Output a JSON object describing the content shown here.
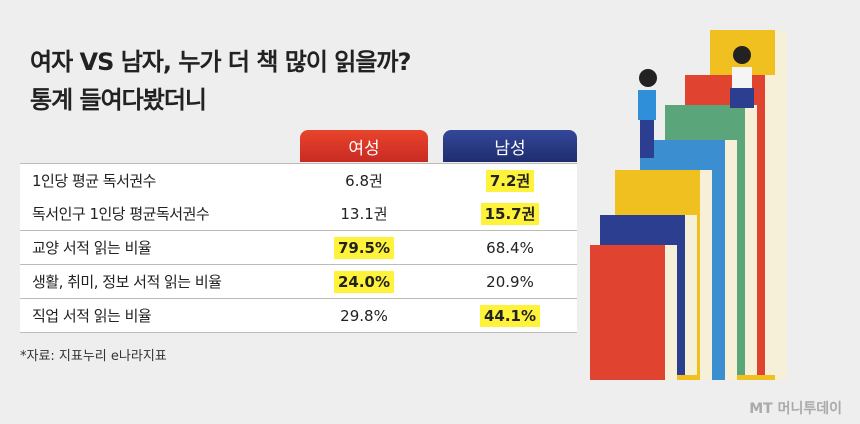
{
  "header": {
    "title_line1": "여자 VS 남자, 누가 더 책 많이 읽을까?",
    "title_line2": "통계 들여다봤더니"
  },
  "table": {
    "columns": [
      "여성",
      "남성"
    ],
    "rows": [
      [
        "1인당 평균 독서권수",
        "6.8권",
        "7.2권"
      ],
      [
        "독서인구 1인당 평균독서권수",
        "13.1권",
        "15.7권"
      ],
      [
        "교양 서적 읽는 비율",
        "79.5%",
        "68.4%"
      ],
      [
        "생활, 취미, 정보 서적 읽는 비율",
        "24.0%",
        "20.9%"
      ],
      [
        "직업 서적 읽는 비율",
        "29.8%",
        "44.1%"
      ]
    ]
  },
  "source": "*자료: 지표누리 e나라지표",
  "watermark": "MT 머니투데이"
}
